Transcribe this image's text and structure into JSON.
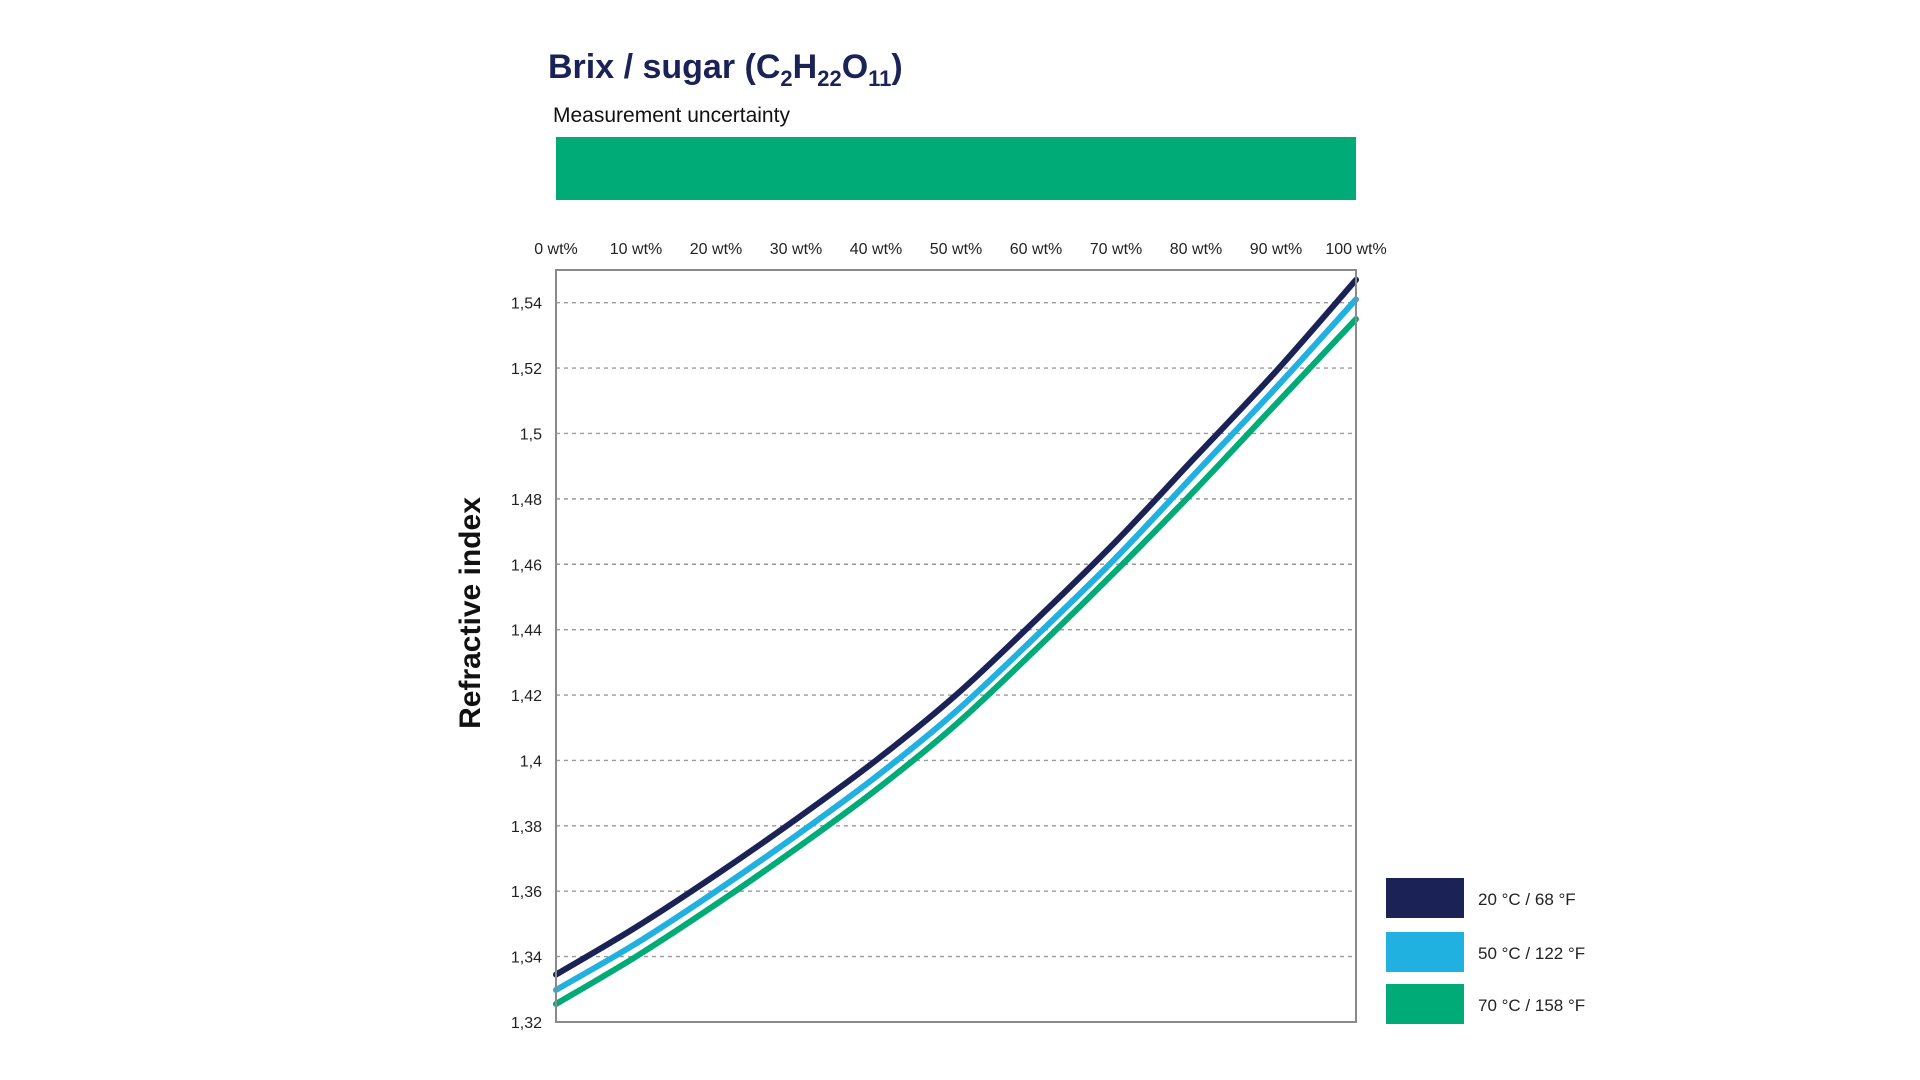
{
  "chart_data": {
    "type": "line",
    "title": {
      "prefix": "Brix / sugar (C",
      "sub1": "2",
      "mid1": "H",
      "sub2": "22",
      "mid2": "O",
      "sub3": "11",
      "suffix": ")"
    },
    "uncertainty": {
      "label": "Measurement uncertainty",
      "color": "#00ab78",
      "range": [
        0,
        100
      ]
    },
    "xlabel": "",
    "ylabel": "Refractive index",
    "xlim": [
      0,
      100
    ],
    "ylim": [
      1.32,
      1.55
    ],
    "x_ticks": [
      0,
      10,
      20,
      30,
      40,
      50,
      60,
      70,
      80,
      90,
      100
    ],
    "x_tick_labels": [
      "0 wt%",
      "10 wt%",
      "20 wt%",
      "30 wt%",
      "40 wt%",
      "50 wt%",
      "60 wt%",
      "70 wt%",
      "80 wt%",
      "90 wt%",
      "100 wt%"
    ],
    "x_axis_position": "top",
    "y_ticks": [
      1.32,
      1.34,
      1.36,
      1.38,
      1.4,
      1.42,
      1.44,
      1.46,
      1.48,
      1.5,
      1.52,
      1.54
    ],
    "y_tick_labels": [
      "1,32",
      "1,34",
      "1,36",
      "1,38",
      "1,4",
      "1,42",
      "1,44",
      "1,46",
      "1,48",
      "1,5",
      "1,52",
      "1,54"
    ],
    "grid": "horizontal-dashed",
    "legend_position": "bottom-right-outside",
    "x": [
      0,
      10,
      20,
      30,
      40,
      50,
      60,
      70,
      80,
      90,
      100
    ],
    "series": [
      {
        "name": "20 °C / 68 °F",
        "color": "#1b2356",
        "values": [
          1.3345,
          1.349,
          1.365,
          1.382,
          1.4,
          1.42,
          1.443,
          1.467,
          1.493,
          1.519,
          1.547
        ]
      },
      {
        "name": "50 °C / 122 °F",
        "color": "#21b1e1",
        "values": [
          1.3298,
          1.344,
          1.36,
          1.377,
          1.395,
          1.415,
          1.438,
          1.462,
          1.488,
          1.514,
          1.541
        ]
      },
      {
        "name": "70 °C / 158 °F",
        "color": "#00ab78",
        "values": [
          1.3255,
          1.34,
          1.356,
          1.373,
          1.391,
          1.411,
          1.434,
          1.458,
          1.483,
          1.509,
          1.535
        ]
      }
    ]
  }
}
